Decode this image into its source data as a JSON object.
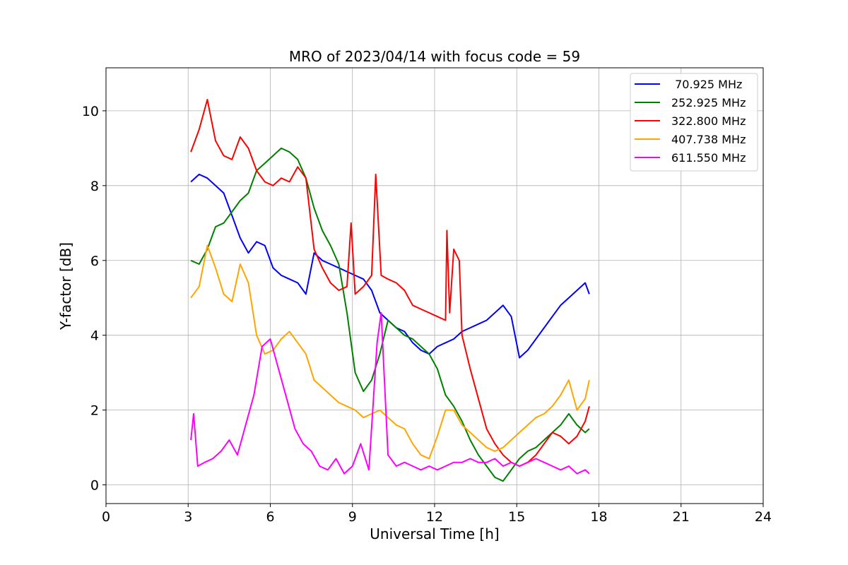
{
  "chart_data": {
    "type": "line",
    "title": "MRO of 2023/04/14 with focus code = 59",
    "xlabel": "Universal Time [h]",
    "ylabel": "Y-factor [dB]",
    "xlim": [
      0,
      24
    ],
    "ylim": [
      -0.5,
      11.15
    ],
    "x_ticks": [
      0,
      3,
      6,
      9,
      12,
      15,
      18,
      21,
      24
    ],
    "y_ticks": [
      0,
      2,
      4,
      6,
      8,
      10
    ],
    "x_tick_labels": [
      "0",
      "3",
      "6",
      "9",
      "12",
      "15",
      "18",
      "21",
      "24"
    ],
    "y_tick_labels": [
      "0",
      "2",
      "4",
      "6",
      "8",
      "10"
    ],
    "grid": true,
    "legend_position": "top-right",
    "series": [
      {
        "name": "70.925 MHz",
        "legend_label": " 70.925 MHz",
        "color": "#0000ff",
        "x": [
          3.1,
          3.4,
          3.7,
          4.0,
          4.3,
          4.6,
          4.9,
          5.2,
          5.5,
          5.8,
          6.1,
          6.4,
          6.7,
          7.0,
          7.3,
          7.6,
          7.9,
          8.2,
          8.5,
          8.8,
          9.1,
          9.4,
          9.7,
          10.0,
          10.3,
          10.6,
          10.9,
          11.2,
          11.5,
          11.8,
          12.1,
          12.4,
          12.7,
          13.0,
          13.3,
          13.6,
          13.9,
          14.2,
          14.5,
          14.8,
          15.1,
          15.4,
          15.7,
          16.0,
          16.3,
          16.6,
          16.9,
          17.2,
          17.5,
          17.65
        ],
        "y": [
          8.1,
          8.3,
          8.2,
          8.0,
          7.8,
          7.2,
          6.6,
          6.2,
          6.5,
          6.4,
          5.8,
          5.6,
          5.5,
          5.4,
          5.1,
          6.2,
          6.0,
          5.9,
          5.8,
          5.7,
          5.6,
          5.5,
          5.2,
          4.6,
          4.4,
          4.2,
          4.1,
          3.8,
          3.6,
          3.5,
          3.7,
          3.8,
          3.9,
          4.1,
          4.2,
          4.3,
          4.4,
          4.6,
          4.8,
          4.5,
          3.4,
          3.6,
          3.9,
          4.2,
          4.5,
          4.8,
          5.0,
          5.2,
          5.4,
          5.1
        ]
      },
      {
        "name": "252.925 MHz",
        "legend_label": "252.925 MHz",
        "color": "#008000",
        "x": [
          3.1,
          3.4,
          3.7,
          4.0,
          4.3,
          4.6,
          4.9,
          5.2,
          5.5,
          5.8,
          6.1,
          6.4,
          6.7,
          7.0,
          7.3,
          7.6,
          7.9,
          8.2,
          8.5,
          8.8,
          9.1,
          9.4,
          9.7,
          10.0,
          10.3,
          10.6,
          10.9,
          11.2,
          11.5,
          11.8,
          12.1,
          12.4,
          12.7,
          13.0,
          13.3,
          13.6,
          13.9,
          14.2,
          14.5,
          14.8,
          15.1,
          15.4,
          15.7,
          16.0,
          16.3,
          16.6,
          16.9,
          17.2,
          17.5,
          17.65
        ],
        "y": [
          6.0,
          5.9,
          6.3,
          6.9,
          7.0,
          7.3,
          7.6,
          7.8,
          8.4,
          8.6,
          8.8,
          9.0,
          8.9,
          8.7,
          8.2,
          7.4,
          6.8,
          6.4,
          5.9,
          4.6,
          3.0,
          2.5,
          2.8,
          3.5,
          4.4,
          4.2,
          4.0,
          3.9,
          3.7,
          3.5,
          3.1,
          2.4,
          2.1,
          1.7,
          1.2,
          0.8,
          0.5,
          0.2,
          0.1,
          0.4,
          0.7,
          0.9,
          1.0,
          1.2,
          1.4,
          1.6,
          1.9,
          1.6,
          1.4,
          1.5
        ]
      },
      {
        "name": "322.800 MHz",
        "legend_label": "322.800 MHz",
        "color": "#ff0000",
        "x": [
          3.1,
          3.4,
          3.7,
          4.0,
          4.3,
          4.6,
          4.9,
          5.2,
          5.5,
          5.8,
          6.1,
          6.4,
          6.7,
          7.0,
          7.3,
          7.6,
          7.9,
          8.2,
          8.5,
          8.8,
          8.95,
          9.1,
          9.4,
          9.7,
          9.85,
          10.05,
          10.3,
          10.6,
          10.9,
          11.2,
          11.5,
          11.8,
          12.1,
          12.4,
          12.45,
          12.55,
          12.7,
          12.9,
          13.0,
          13.3,
          13.6,
          13.9,
          14.2,
          14.5,
          14.8,
          15.1,
          15.4,
          15.7,
          16.0,
          16.3,
          16.6,
          16.9,
          17.2,
          17.5,
          17.65
        ],
        "y": [
          8.9,
          9.5,
          10.3,
          9.2,
          8.8,
          8.7,
          9.3,
          9.0,
          8.4,
          8.1,
          8.0,
          8.2,
          8.1,
          8.5,
          8.2,
          6.3,
          5.8,
          5.4,
          5.2,
          5.3,
          7.0,
          5.1,
          5.3,
          5.6,
          8.3,
          5.6,
          5.5,
          5.4,
          5.2,
          4.8,
          4.7,
          4.6,
          4.5,
          4.4,
          6.8,
          4.6,
          6.3,
          6.0,
          4.0,
          3.1,
          2.3,
          1.5,
          1.1,
          0.8,
          0.6,
          0.5,
          0.6,
          0.8,
          1.1,
          1.4,
          1.3,
          1.1,
          1.3,
          1.7,
          2.1
        ]
      },
      {
        "name": "407.738 MHz",
        "legend_label": "407.738 MHz",
        "color": "#ffa500",
        "x": [
          3.1,
          3.4,
          3.7,
          4.0,
          4.3,
          4.6,
          4.9,
          5.2,
          5.5,
          5.8,
          6.1,
          6.4,
          6.7,
          7.0,
          7.3,
          7.6,
          7.9,
          8.2,
          8.5,
          8.8,
          9.1,
          9.4,
          9.7,
          10.0,
          10.3,
          10.6,
          10.9,
          11.2,
          11.5,
          11.8,
          12.1,
          12.4,
          12.7,
          13.0,
          13.3,
          13.6,
          13.9,
          14.2,
          14.5,
          14.8,
          15.1,
          15.4,
          15.7,
          16.0,
          16.3,
          16.6,
          16.9,
          17.2,
          17.5,
          17.65
        ],
        "y": [
          5.0,
          5.3,
          6.4,
          5.8,
          5.1,
          4.9,
          5.9,
          5.4,
          4.0,
          3.5,
          3.6,
          3.9,
          4.1,
          3.8,
          3.5,
          2.8,
          2.6,
          2.4,
          2.2,
          2.1,
          2.0,
          1.8,
          1.9,
          2.0,
          1.8,
          1.6,
          1.5,
          1.1,
          0.8,
          0.7,
          1.3,
          2.0,
          2.0,
          1.6,
          1.4,
          1.2,
          1.0,
          0.9,
          1.0,
          1.2,
          1.4,
          1.6,
          1.8,
          1.9,
          2.1,
          2.4,
          2.8,
          2.0,
          2.3,
          2.8
        ]
      },
      {
        "name": "611.550 MHz",
        "legend_label": "611.550 MHz",
        "color": "#ff00ff",
        "x": [
          3.1,
          3.2,
          3.35,
          3.6,
          3.9,
          4.2,
          4.5,
          4.8,
          5.1,
          5.4,
          5.7,
          6.0,
          6.3,
          6.6,
          6.9,
          7.2,
          7.5,
          7.8,
          8.1,
          8.4,
          8.7,
          9.0,
          9.3,
          9.6,
          9.9,
          10.05,
          10.3,
          10.6,
          10.9,
          11.2,
          11.5,
          11.8,
          12.1,
          12.4,
          12.7,
          13.0,
          13.3,
          13.6,
          13.9,
          14.2,
          14.5,
          14.8,
          15.1,
          15.4,
          15.7,
          16.0,
          16.3,
          16.6,
          16.9,
          17.2,
          17.5,
          17.65
        ],
        "y": [
          1.2,
          1.9,
          0.5,
          0.6,
          0.7,
          0.9,
          1.2,
          0.8,
          1.6,
          2.4,
          3.7,
          3.9,
          3.1,
          2.3,
          1.5,
          1.1,
          0.9,
          0.5,
          0.4,
          0.7,
          0.3,
          0.5,
          1.1,
          0.4,
          3.8,
          4.6,
          0.8,
          0.5,
          0.6,
          0.5,
          0.4,
          0.5,
          0.4,
          0.5,
          0.6,
          0.6,
          0.7,
          0.6,
          0.6,
          0.7,
          0.5,
          0.6,
          0.5,
          0.6,
          0.7,
          0.6,
          0.5,
          0.4,
          0.5,
          0.3,
          0.4,
          0.3
        ]
      }
    ]
  }
}
